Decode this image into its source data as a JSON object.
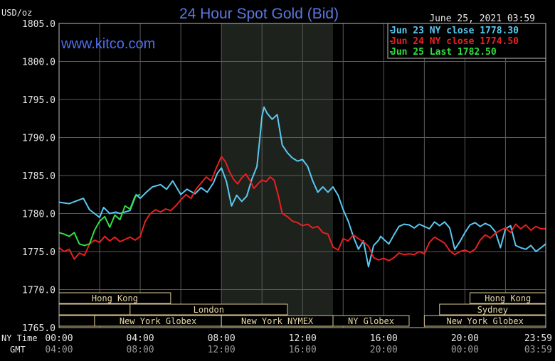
{
  "chart_data": {
    "type": "line",
    "title": "24 Hour Spot Gold (Bid)",
    "site": "www.kitco.com",
    "unit_label": "USD/oz",
    "date_label": "June 25, 2021 03:59",
    "ylim": [
      1765,
      1805
    ],
    "yticks": [
      "1805.0",
      "1800.0",
      "1795.0",
      "1790.0",
      "1785.0",
      "1780.0",
      "1775.0",
      "1770.0",
      "1765.0"
    ],
    "xlim_hours": [
      0,
      23.983
    ],
    "grid": true,
    "legend_position": "top-right",
    "x_axis_rows": {
      "ny": {
        "label": "NY Time",
        "ticks": [
          "00:00",
          "04:00",
          "08:00",
          "12:00",
          "16:00",
          "20:00",
          "23:59"
        ]
      },
      "gmt": {
        "label": "GMT",
        "ticks": [
          "04:00",
          "08:00",
          "12:00",
          "16:00",
          "20:00",
          "00:00",
          "03:59"
        ]
      }
    },
    "highlight_hours": [
      8,
      13.5
    ],
    "sessions": [
      {
        "name": "Hong Kong",
        "row": 0,
        "start": 0,
        "end": 5.5
      },
      {
        "name": "",
        "row": 1,
        "start": 0,
        "end": 3.5
      },
      {
        "name": "London",
        "row": 1,
        "start": 3.5,
        "end": 11.25
      },
      {
        "name": "",
        "row": 2,
        "start": 0,
        "end": 1.75
      },
      {
        "name": "New York Globex",
        "row": 2,
        "start": 1.75,
        "end": 8
      },
      {
        "name": "New York NYMEX",
        "row": 2,
        "start": 8,
        "end": 13.5
      },
      {
        "name": "NY Globex",
        "row": 2,
        "start": 13.5,
        "end": 17.25
      },
      {
        "name": "Hong Kong",
        "row": 0,
        "start": 20.25,
        "end": 24
      },
      {
        "name": "Sydney",
        "row": 1,
        "start": 18.75,
        "end": 24
      },
      {
        "name": "New York Globex",
        "row": 2,
        "start": 18,
        "end": 24
      }
    ],
    "series": [
      {
        "name": "Jun 23 NY close 1778.30",
        "color": "#5bc8f0",
        "x": [
          0,
          0.5,
          1,
          1.2,
          1.5,
          1.75,
          2,
          2.2,
          2.5,
          2.8,
          3,
          3.5,
          3.8,
          4,
          4.3,
          4.6,
          5,
          5.3,
          5.6,
          6,
          6.3,
          6.7,
          7,
          7.3,
          7.6,
          7.8,
          8,
          8.25,
          8.5,
          8.75,
          9,
          9.25,
          9.5,
          9.75,
          9.9,
          10,
          10.1,
          10.25,
          10.5,
          10.75,
          11,
          11.25,
          11.5,
          11.75,
          12,
          12.25,
          12.5,
          12.75,
          13,
          13.25,
          13.5,
          13.75,
          14,
          14.25,
          14.5,
          14.75,
          15,
          15.25,
          15.5,
          15.75,
          15.85,
          16,
          16.25,
          16.5,
          16.75,
          17,
          17.25,
          17.5,
          17.75,
          18,
          18.25,
          18.5,
          18.75,
          19,
          19.25,
          19.5,
          19.75,
          20,
          20.25,
          20.5,
          20.75,
          21,
          21.25,
          21.5,
          21.75,
          22,
          22.25,
          22.5,
          22.75,
          23,
          23.25,
          23.5,
          23.75,
          23.983
        ],
        "values": [
          1781.5,
          1781.3,
          1781.8,
          1782,
          1780.5,
          1780,
          1779.5,
          1780.8,
          1780,
          1780.2,
          1780,
          1780.4,
          1782.5,
          1782,
          1782.8,
          1783.5,
          1783.8,
          1783.2,
          1784.3,
          1782.5,
          1783.2,
          1782.6,
          1783.4,
          1782.8,
          1784,
          1785.3,
          1786,
          1784.2,
          1781,
          1782.4,
          1781.6,
          1782.3,
          1784.5,
          1786.2,
          1790,
          1792.8,
          1794,
          1793.2,
          1792.4,
          1793,
          1789,
          1788,
          1787.3,
          1786.9,
          1787.1,
          1786.2,
          1784.3,
          1782.8,
          1783.5,
          1782.8,
          1783.5,
          1782.4,
          1780.5,
          1779,
          1777,
          1775.3,
          1776.4,
          1773,
          1775.8,
          1776.5,
          1777,
          1776.6,
          1776,
          1777.2,
          1778.3,
          1778.6,
          1778.5,
          1778.1,
          1778.6,
          1778.3,
          1778,
          1778.9,
          1778.4,
          1778.9,
          1778.1,
          1775.3,
          1776.3,
          1777.5,
          1778.5,
          1778.8,
          1778.3,
          1778.7,
          1778.4,
          1777.6,
          1775.5,
          1778,
          1778.4,
          1775.8,
          1775.5,
          1775.3,
          1775.8,
          1775,
          1775.5,
          1776
        ]
      },
      {
        "name": "Jun 24 NY close 1774.50",
        "color": "#e82020",
        "x": [
          0,
          0.25,
          0.5,
          0.75,
          1,
          1.25,
          1.5,
          1.75,
          2,
          2.25,
          2.5,
          2.75,
          3,
          3.25,
          3.5,
          3.75,
          4,
          4.25,
          4.5,
          4.75,
          5,
          5.25,
          5.5,
          5.75,
          6,
          6.25,
          6.5,
          6.75,
          7,
          7.25,
          7.5,
          7.75,
          8,
          8.2,
          8.4,
          8.6,
          8.8,
          9,
          9.2,
          9.4,
          9.6,
          9.8,
          10,
          10.2,
          10.4,
          10.6,
          10.8,
          11,
          11.25,
          11.5,
          11.75,
          12,
          12.25,
          12.5,
          12.75,
          13,
          13.25,
          13.5,
          13.75,
          14,
          14.25,
          14.5,
          14.75,
          15,
          15.25,
          15.5,
          15.75,
          16,
          16.25,
          16.5,
          16.75,
          17,
          17.25,
          17.5,
          17.75,
          18,
          18.25,
          18.5,
          18.75,
          19,
          19.25,
          19.5,
          19.75,
          20,
          20.25,
          20.5,
          20.75,
          21,
          21.25,
          21.5,
          21.75,
          22,
          22.25,
          22.5,
          22.75,
          23,
          23.25,
          23.5,
          23.75,
          23.983
        ],
        "values": [
          1775.5,
          1775,
          1775.3,
          1774,
          1774.8,
          1774.5,
          1776,
          1776.5,
          1776.2,
          1777,
          1776.4,
          1776.9,
          1776.3,
          1776.6,
          1776.9,
          1776.5,
          1777,
          1779,
          1780,
          1780.5,
          1780.2,
          1780.6,
          1780.4,
          1781,
          1781.8,
          1782.5,
          1782,
          1783.2,
          1784,
          1784.8,
          1784.3,
          1786,
          1787.5,
          1786.8,
          1785.5,
          1784.5,
          1783.9,
          1784.7,
          1785.2,
          1784.4,
          1783.3,
          1783.9,
          1784.4,
          1784.2,
          1784.8,
          1784.4,
          1782.4,
          1780,
          1779.6,
          1779,
          1778.8,
          1778.4,
          1778.6,
          1778.1,
          1778.3,
          1777.5,
          1777.3,
          1775.6,
          1775.2,
          1776.7,
          1776.4,
          1777.2,
          1776.7,
          1776.3,
          1775.7,
          1774.2,
          1773.9,
          1774.1,
          1773.8,
          1774.2,
          1774.8,
          1774.6,
          1774.7,
          1774.6,
          1775,
          1774.7,
          1776.2,
          1776.9,
          1776.5,
          1776.1,
          1775.1,
          1774.6,
          1775,
          1775.2,
          1774.9,
          1775.3,
          1776.5,
          1777.2,
          1776.8,
          1777.4,
          1777.8,
          1778.1,
          1777.5,
          1778.6,
          1778,
          1778.5,
          1777.8,
          1778.3,
          1778,
          1778
        ]
      },
      {
        "name": "Jun 25 Last 1782.50",
        "color": "#30e040",
        "x": [
          0,
          0.25,
          0.5,
          0.75,
          1,
          1.25,
          1.5,
          1.75,
          2,
          2.25,
          2.5,
          2.75,
          3,
          3.25,
          3.5,
          3.75,
          4
        ],
        "values": [
          1777.5,
          1777.3,
          1777,
          1777.5,
          1776,
          1775.8,
          1776,
          1777.8,
          1779,
          1779.6,
          1778.2,
          1779.8,
          1779.2,
          1781,
          1780.6,
          1782.3,
          1782.5
        ]
      }
    ]
  }
}
